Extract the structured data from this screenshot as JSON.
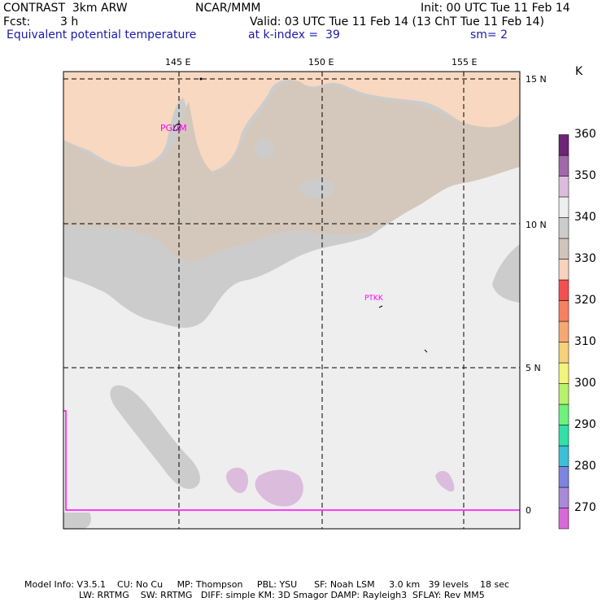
{
  "header": {
    "model": "CONTRAST  3km ARW",
    "center": "NCAR/MMM",
    "init": "Init: 00 UTC Tue 11 Feb 14",
    "fcst_label": "Fcst:",
    "fcst_value": "3 h",
    "valid": "Valid: 03 UTC Tue 11 Feb 14 (13 ChT Tue 11 Feb 14)",
    "field": "Equivalent potential temperature",
    "level": "at k-index =  39",
    "smoothing": "sm= 2"
  },
  "map": {
    "lon_labels": [
      "145 E",
      "150 E",
      "155 E"
    ],
    "lat_labels": [
      "15 N",
      "10 N",
      "5 N",
      "0"
    ],
    "stations": [
      "PGUM",
      "PTKK"
    ]
  },
  "colorbar": {
    "unit": "K",
    "tick_labels": [
      "270",
      "280",
      "290",
      "300",
      "310",
      "320",
      "330",
      "340",
      "350",
      "360"
    ],
    "colors_bottom_to_top": [
      "#d86ad8",
      "#a88ad8",
      "#7c86e0",
      "#3ac0d8",
      "#32e0a8",
      "#6ef27a",
      "#b8f26a",
      "#f4f47a",
      "#f6d07a",
      "#f6a872",
      "#f68060",
      "#f45050",
      "#f8d2bc",
      "#d0c4bc",
      "#cccccc",
      "#eeeeee",
      "#dcbcdc",
      "#a068a8",
      "#6e2478"
    ]
  },
  "footer": {
    "line1": "Model Info: V3.5.1    CU: No Cu     MP: Thompson     PBL: YSU      SF: Noah LSM     3.0 km   39 levels    18 sec",
    "line2": "LW: RRTMG    SW: RRTMG   DIFF: simple KM: 3D Smagor DAMP: Rayleigh3  SFLAY: Rev MM5"
  }
}
